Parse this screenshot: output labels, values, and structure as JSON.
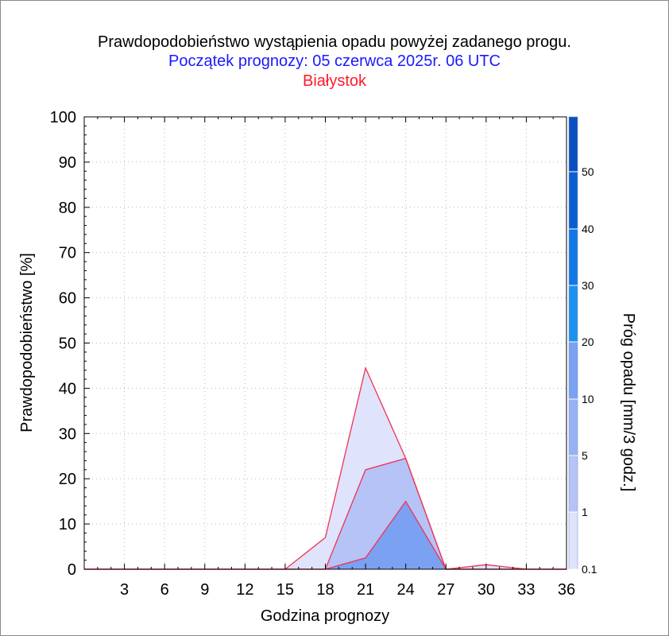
{
  "chart_data": {
    "type": "area",
    "title": "Prawdopodobieństwo wystąpienia opadu powyżej zadanego progu.",
    "subtitle": "Początek prognozy: 05 czerwca 2025r. 06 UTC",
    "location": "Białystok",
    "xlabel": "Godzina prognozy",
    "ylabel": "Prawdopodobieństwo [%]",
    "colorbar_label": "Próg opadu [mm/3 godz.]",
    "xlim": [
      0,
      36
    ],
    "ylim": [
      0,
      100
    ],
    "x_ticks": [
      3,
      6,
      9,
      12,
      15,
      18,
      21,
      24,
      27,
      30,
      33,
      36
    ],
    "y_ticks": [
      0,
      10,
      20,
      30,
      40,
      50,
      60,
      70,
      80,
      90,
      100
    ],
    "grid": true,
    "x": [
      0,
      3,
      6,
      9,
      12,
      15,
      18,
      21,
      24,
      27,
      30,
      33,
      36
    ],
    "series": [
      {
        "threshold": 0.1,
        "values": [
          0,
          0,
          0,
          0,
          0,
          0,
          7,
          44.5,
          24.5,
          0,
          1,
          0,
          0
        ],
        "color": "#dfe3fb"
      },
      {
        "threshold": 1,
        "values": [
          0,
          0,
          0,
          0,
          0,
          0,
          0,
          22,
          24.5,
          0,
          0,
          0,
          0
        ],
        "color": "#b5c3f6"
      },
      {
        "threshold": 5,
        "values": [
          0,
          0,
          0,
          0,
          0,
          0,
          0,
          2.5,
          15,
          0,
          0,
          0,
          0
        ],
        "color": "#7ba1f2"
      }
    ],
    "colorbar": {
      "labels": [
        "0.1",
        "1",
        "5",
        "10",
        "20",
        "30",
        "40",
        "50"
      ],
      "segments": [
        "#dfe3fb",
        "#b5c3f6",
        "#97b2f4",
        "#7ba1f2",
        "#1b92f0",
        "#1278e4",
        "#0a5fd0",
        "#0a4fbe",
        "#0a3fa6"
      ]
    },
    "line_color": "#ee3355"
  }
}
